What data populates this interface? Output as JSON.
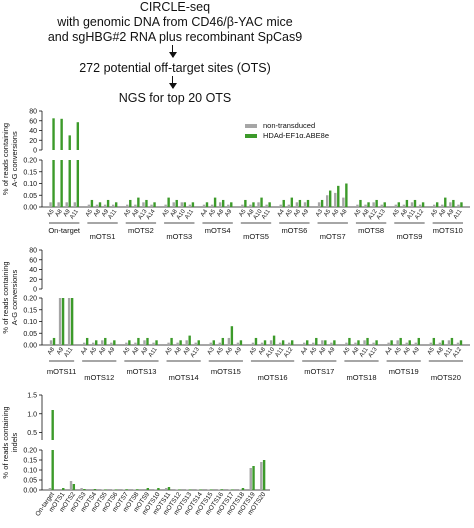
{
  "flow": {
    "line1": "CIRCLE-seq",
    "line2": "with genomic DNA from CD46/β-YAC mice",
    "line3": "and sgHBG#2 RNA plus recombinant SpCas9",
    "line4": "272 potential off-target sites (OTS)",
    "line5": "NGS for top 20 OTS"
  },
  "colors": {
    "non_transduced": "#a6a6a6",
    "abe": "#3c9a2a"
  },
  "chart_data": [
    {
      "type": "bar",
      "panel": "A-G conversions, on-target and mOTS1-mOTS10",
      "ylabel": "% of reads containing A-G conversions",
      "yaxis": {
        "broken": true,
        "lower_ticks": [
          "0.00",
          "0.05",
          "0.10",
          "0.15",
          "0.20"
        ],
        "lower_range": [
          0,
          0.2
        ],
        "upper_ticks": [
          "0",
          "20",
          "40",
          "60",
          "80"
        ],
        "upper_range": [
          0,
          80
        ]
      },
      "legend": {
        "position": "top-right",
        "entries": [
          "non-transduced",
          "HDAd-EF1α.ABE8e"
        ]
      },
      "series": [
        {
          "name": "non-transduced"
        },
        {
          "name": "HDAd-EF1α.ABE8e"
        }
      ],
      "groups": [
        {
          "name": "On-target",
          "sites": [
            "A5",
            "A8",
            "A9",
            "A11"
          ],
          "values": [
            [
              0.02,
              65
            ],
            [
              0.02,
              64
            ],
            [
              0.02,
              30
            ],
            [
              0.02,
              57
            ]
          ]
        },
        {
          "name": "mOTS1",
          "sites": [
            "A5",
            "A8",
            "A9",
            "A11"
          ],
          "values": [
            [
              0.01,
              0.03
            ],
            [
              0.01,
              0.02
            ],
            [
              0.01,
              0.03
            ],
            [
              0.01,
              0.02
            ]
          ]
        },
        {
          "name": "mOTS2",
          "sites": [
            "A5",
            "A8",
            "A13",
            "A14"
          ],
          "values": [
            [
              0.01,
              0.03
            ],
            [
              0.01,
              0.04
            ],
            [
              0.02,
              0.03
            ],
            [
              0.01,
              0.02
            ]
          ]
        },
        {
          "name": "mOTS3",
          "sites": [
            "A5",
            "A8",
            "A10",
            "A11"
          ],
          "values": [
            [
              0.01,
              0.04
            ],
            [
              0.02,
              0.03
            ],
            [
              0.02,
              0.02
            ],
            [
              0.01,
              0.02
            ]
          ]
        },
        {
          "name": "mOTS4",
          "sites": [
            "A4",
            "A5",
            "A8",
            "A9"
          ],
          "values": [
            [
              0.01,
              0.02
            ],
            [
              0.01,
              0.04
            ],
            [
              0.02,
              0.03
            ],
            [
              0.01,
              0.02
            ]
          ]
        },
        {
          "name": "mOTS5",
          "sites": [
            "A5",
            "A8",
            "A10",
            "A11"
          ],
          "values": [
            [
              0.01,
              0.03
            ],
            [
              0.01,
              0.02
            ],
            [
              0.02,
              0.04
            ],
            [
              0.01,
              0.02
            ]
          ]
        },
        {
          "name": "mOTS6",
          "sites": [
            "A4",
            "A5",
            "A6",
            "A9"
          ],
          "values": [
            [
              0.01,
              0.03
            ],
            [
              0.01,
              0.04
            ],
            [
              0.02,
              0.03
            ],
            [
              0.02,
              0.03
            ]
          ]
        },
        {
          "name": "mOTS7",
          "sites": [
            "A3",
            "A5",
            "A6",
            "A8"
          ],
          "values": [
            [
              0.02,
              0.03
            ],
            [
              0.05,
              0.07
            ],
            [
              0.06,
              0.09
            ],
            [
              0.04,
              0.1
            ]
          ]
        },
        {
          "name": "mOTS8",
          "sites": [
            "A5",
            "A8",
            "A12",
            "A13"
          ],
          "values": [
            [
              0.01,
              0.03
            ],
            [
              0.01,
              0.02
            ],
            [
              0.02,
              0.03
            ],
            [
              0.01,
              0.02
            ]
          ]
        },
        {
          "name": "mOTS9",
          "sites": [
            "A5",
            "A8",
            "A11",
            "A12"
          ],
          "values": [
            [
              0.01,
              0.02
            ],
            [
              0.01,
              0.03
            ],
            [
              0.02,
              0.03
            ],
            [
              0.01,
              0.02
            ]
          ]
        },
        {
          "name": "mOTS10",
          "sites": [
            "A5",
            "A8",
            "A9",
            "A11"
          ],
          "values": [
            [
              0.01,
              0.02
            ],
            [
              0.01,
              0.04
            ],
            [
              0.02,
              0.03
            ],
            [
              0.01,
              0.02
            ]
          ]
        }
      ]
    },
    {
      "type": "bar",
      "panel": "A-G conversions, mOTS11-mOTS20",
      "ylabel": "% of reads containing A-G conversions",
      "yaxis": {
        "broken": true,
        "lower_ticks": [
          "0.00",
          "0.05",
          "0.10",
          "0.15",
          "0.20"
        ],
        "lower_range": [
          0,
          0.2
        ],
        "upper_ticks": [
          "0",
          "20",
          "40",
          "60",
          "80"
        ],
        "upper_range": [
          0,
          80
        ]
      },
      "series": [
        {
          "name": "non-transduced"
        },
        {
          "name": "HDAd-EF1α.ABE8e"
        }
      ],
      "groups": [
        {
          "name": "mOTS11",
          "sites": [
            "A8",
            "A9",
            "A11"
          ],
          "values": [
            [
              0.02,
              0.03
            ],
            [
              0.2,
              0.2
            ],
            [
              0.2,
              0.2
            ]
          ]
        },
        {
          "name": "mOTS12",
          "sites": [
            "A4",
            "A5",
            "A8",
            "A9"
          ],
          "values": [
            [
              0.01,
              0.03
            ],
            [
              0.01,
              0.02
            ],
            [
              0.02,
              0.03
            ],
            [
              0.01,
              0.02
            ]
          ]
        },
        {
          "name": "mOTS13",
          "sites": [
            "A5",
            "A8",
            "A9",
            "A11"
          ],
          "values": [
            [
              0.01,
              0.02
            ],
            [
              0.01,
              0.03
            ],
            [
              0.02,
              0.03
            ],
            [
              0.01,
              0.02
            ]
          ]
        },
        {
          "name": "mOTS14",
          "sites": [
            "A5",
            "A8",
            "A9",
            "A13"
          ],
          "values": [
            [
              0.01,
              0.03
            ],
            [
              0.01,
              0.02
            ],
            [
              0.02,
              0.04
            ],
            [
              0.01,
              0.02
            ]
          ]
        },
        {
          "name": "mOTS15",
          "sites": [
            "A3",
            "A5",
            "A6",
            "A9"
          ],
          "values": [
            [
              0.01,
              0.02
            ],
            [
              0.01,
              0.03
            ],
            [
              0.03,
              0.08
            ],
            [
              0.01,
              0.02
            ]
          ]
        },
        {
          "name": "mOTS16",
          "sites": [
            "A5",
            "A8",
            "A10",
            "A11",
            "A12"
          ],
          "values": [
            [
              0.01,
              0.03
            ],
            [
              0.01,
              0.02
            ],
            [
              0.02,
              0.04
            ],
            [
              0.01,
              0.02
            ],
            [
              0.01,
              0.02
            ]
          ]
        },
        {
          "name": "mOTS17",
          "sites": [
            "A4",
            "A5",
            "A8",
            "A9"
          ],
          "values": [
            [
              0.01,
              0.02
            ],
            [
              0.01,
              0.03
            ],
            [
              0.02,
              0.02
            ],
            [
              0.01,
              0.02
            ]
          ]
        },
        {
          "name": "mOTS18",
          "sites": [
            "A5",
            "A8",
            "A11",
            "A13"
          ],
          "values": [
            [
              0.01,
              0.03
            ],
            [
              0.01,
              0.02
            ],
            [
              0.02,
              0.03
            ],
            [
              0.01,
              0.02
            ]
          ]
        },
        {
          "name": "mOTS19",
          "sites": [
            "A4",
            "A5",
            "A6",
            "A9"
          ],
          "values": [
            [
              0.01,
              0.02
            ],
            [
              0.02,
              0.03
            ],
            [
              0.01,
              0.02
            ],
            [
              0.01,
              0.03
            ]
          ]
        },
        {
          "name": "mOTS20",
          "sites": [
            "A5",
            "A8",
            "A11",
            "A12"
          ],
          "values": [
            [
              0.01,
              0.03
            ],
            [
              0.01,
              0.02
            ],
            [
              0.02,
              0.03
            ],
            [
              0.01,
              0.02
            ]
          ]
        }
      ]
    },
    {
      "type": "bar",
      "panel": "indels",
      "ylabel": "% of reads containing indels",
      "yaxis": {
        "broken": true,
        "lower_ticks": [
          "0.00",
          "0.05",
          "0.10",
          "0.15",
          "0.20"
        ],
        "lower_range": [
          0,
          0.2
        ],
        "upper_ticks": [
          "0.5",
          "1.0",
          "1.5"
        ],
        "upper_range": [
          0.3,
          1.5
        ]
      },
      "series": [
        {
          "name": "non-transduced"
        },
        {
          "name": "HDAd-EF1α.ABE8e"
        }
      ],
      "categories": [
        "On-target",
        "mOTS1",
        "mOTS2",
        "mOTS3",
        "mOTS4",
        "mOTS5",
        "mOTS6",
        "mOTS7",
        "mOTS8",
        "mOTS9",
        "mOTS10",
        "mOTS11",
        "mOTS12",
        "mOTS13",
        "mOTS14",
        "mOTS15",
        "mOTS16",
        "mOTS17",
        "mOTS18",
        "mOTS19",
        "mOTS20"
      ],
      "values": [
        [
          0.01,
          1.1
        ],
        [
          0.005,
          0.01
        ],
        [
          0.045,
          0.03
        ],
        [
          0.01,
          0.005
        ],
        [
          0.005,
          0.005
        ],
        [
          0.003,
          0.003
        ],
        [
          0.003,
          0.003
        ],
        [
          0.003,
          0.004
        ],
        [
          0.003,
          0.004
        ],
        [
          0.005,
          0.01
        ],
        [
          0.003,
          0.01
        ],
        [
          0.01,
          0.015
        ],
        [
          0.003,
          0.003
        ],
        [
          0.003,
          0.003
        ],
        [
          0.003,
          0.003
        ],
        [
          0.003,
          0.003
        ],
        [
          0.003,
          0.004
        ],
        [
          0.003,
          0.003
        ],
        [
          0.003,
          0.01
        ],
        [
          0.11,
          0.12
        ],
        [
          0.14,
          0.15
        ]
      ]
    }
  ]
}
